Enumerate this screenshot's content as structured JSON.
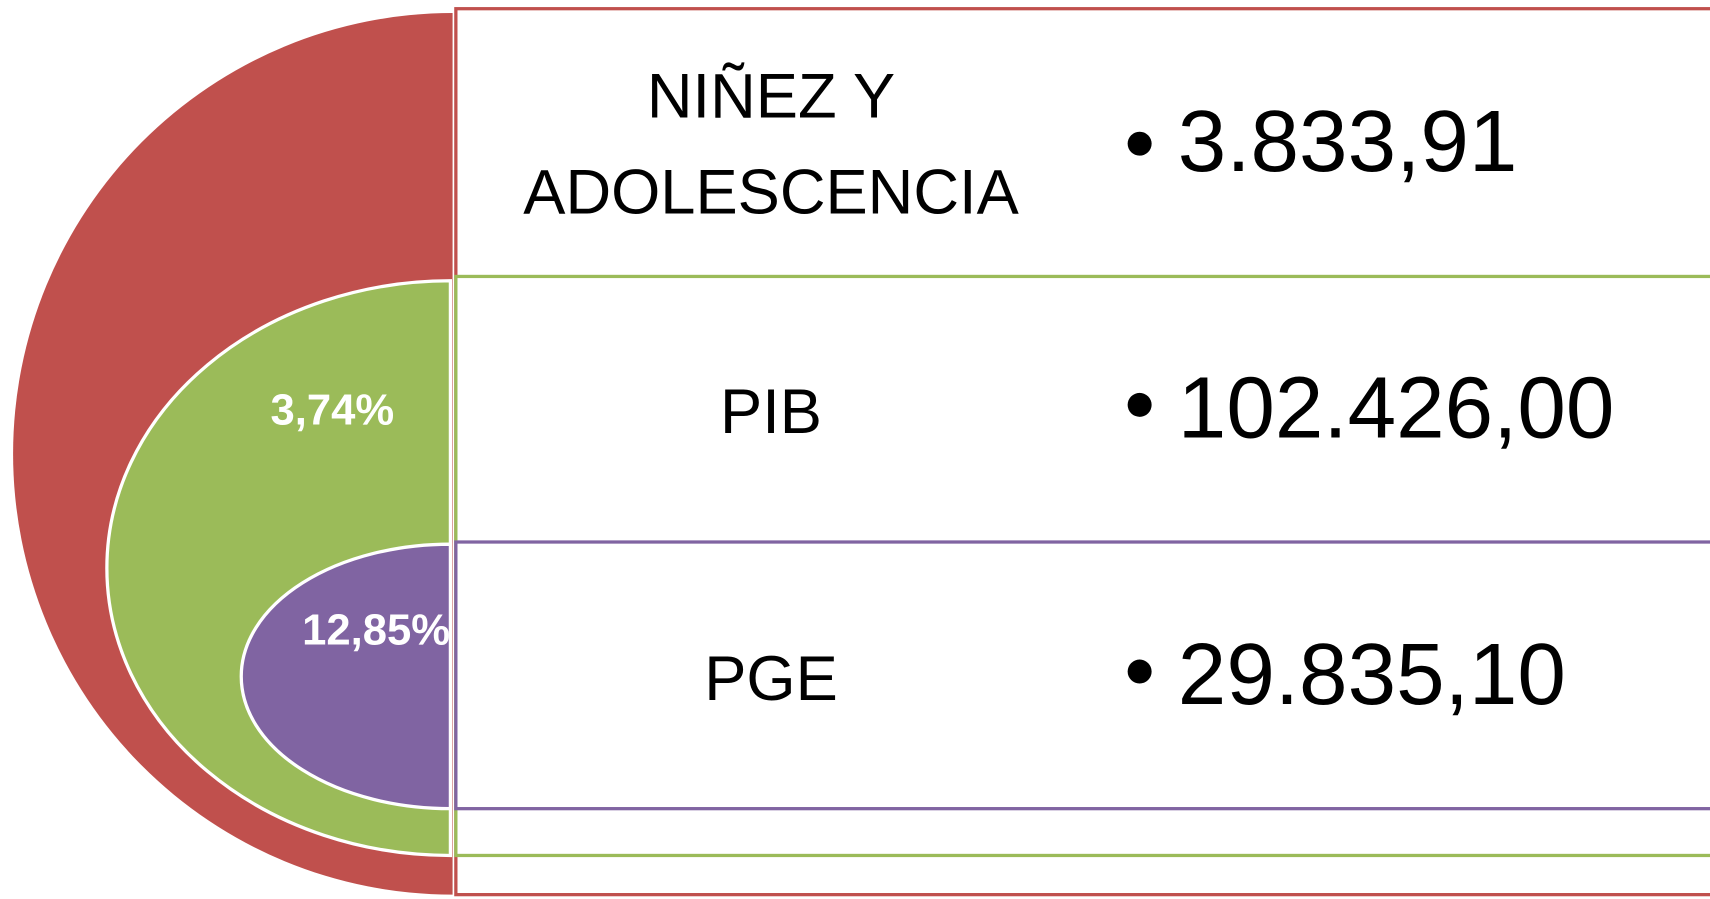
{
  "items": [
    {
      "label": [
        "NIÑEZ Y",
        "ADOLESCENCIA"
      ],
      "value": "3.833,91"
    },
    {
      "label": [
        "PIB"
      ],
      "value": "102.426,00"
    },
    {
      "label": [
        "PGE"
      ],
      "value": "29.835,10"
    }
  ],
  "percentages": [
    "3,74%",
    "12,85%"
  ]
}
